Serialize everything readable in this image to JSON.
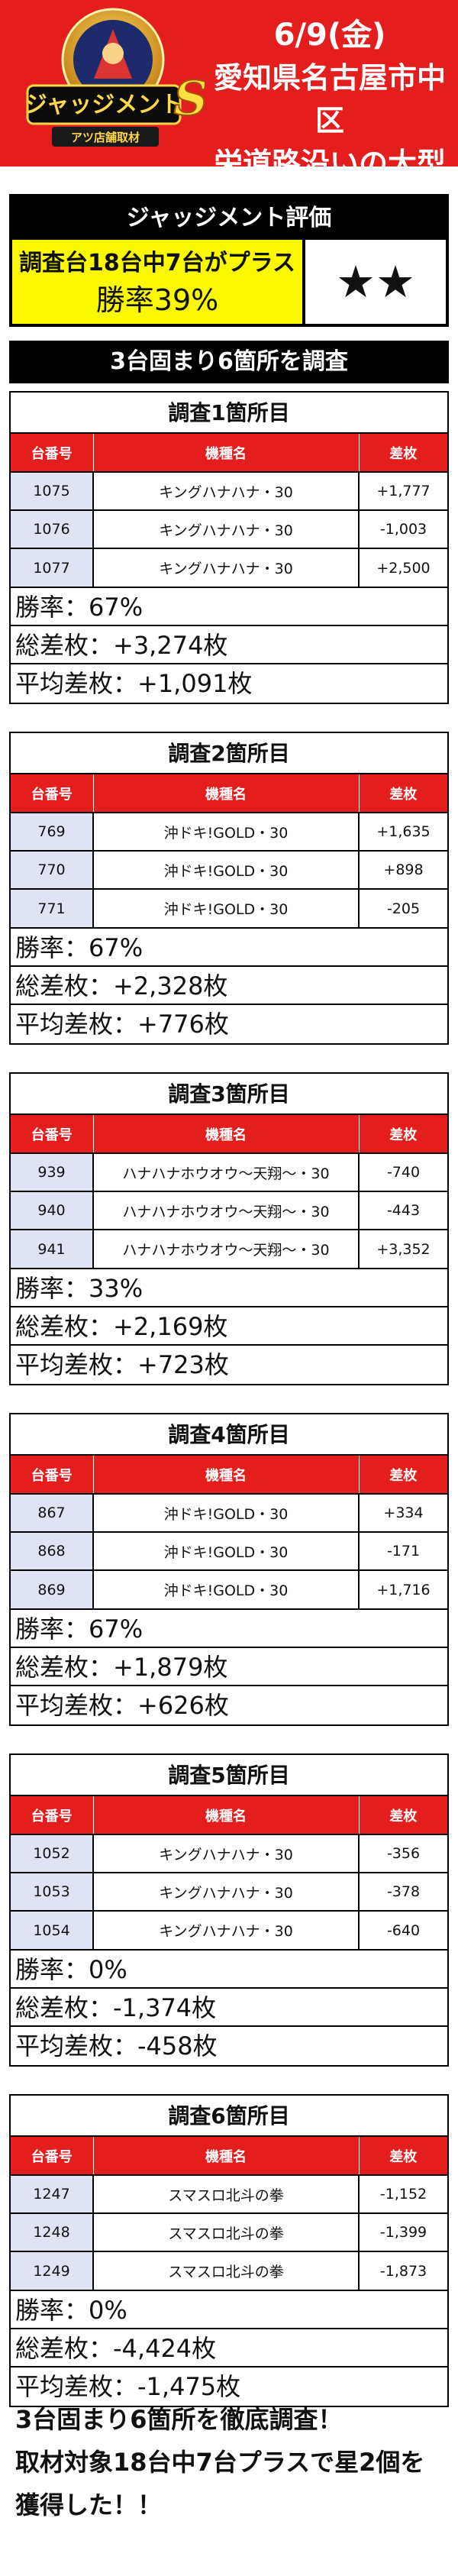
{
  "header": {
    "logo_text": "ジャッジメント",
    "logo_badge": "S",
    "logo_sub": "アツ店舗取材",
    "date": "6/9(金)",
    "location_line1": "愛知県名古屋市中区",
    "location_line2": "栄道路沿いの大型店"
  },
  "evaluation": {
    "title": "ジャッジメント評価",
    "description": "調査台18台中7台がプラス",
    "win_rate": "勝率39%",
    "stars": "★★"
  },
  "banner": "3台固まり6箇所を調査",
  "table_headers": {
    "machine_no": "台番号",
    "machine_name": "機種名",
    "diff": "差枚"
  },
  "surveys": [
    {
      "title": "調査1箇所目",
      "rows": [
        {
          "no": "1075",
          "name": "キングハナハナ・30",
          "diff": "+1,777"
        },
        {
          "no": "1076",
          "name": "キングハナハナ・30",
          "diff": "-1,003"
        },
        {
          "no": "1077",
          "name": "キングハナハナ・30",
          "diff": "+2,500"
        }
      ],
      "win_rate": "勝率：67%",
      "total": "総差枚：+3,274枚",
      "average": "平均差枚：+1,091枚"
    },
    {
      "title": "調査2箇所目",
      "rows": [
        {
          "no": "769",
          "name": "沖ドキ!GOLD・30",
          "diff": "+1,635"
        },
        {
          "no": "770",
          "name": "沖ドキ!GOLD・30",
          "diff": "+898"
        },
        {
          "no": "771",
          "name": "沖ドキ!GOLD・30",
          "diff": "-205"
        }
      ],
      "win_rate": "勝率：67%",
      "total": "総差枚：+2,328枚",
      "average": "平均差枚：+776枚"
    },
    {
      "title": "調査3箇所目",
      "rows": [
        {
          "no": "939",
          "name": "ハナハナホウオウ〜天翔〜・30",
          "diff": "-740"
        },
        {
          "no": "940",
          "name": "ハナハナホウオウ〜天翔〜・30",
          "diff": "-443"
        },
        {
          "no": "941",
          "name": "ハナハナホウオウ〜天翔〜・30",
          "diff": "+3,352"
        }
      ],
      "win_rate": "勝率：33%",
      "total": "総差枚：+2,169枚",
      "average": "平均差枚：+723枚"
    },
    {
      "title": "調査4箇所目",
      "rows": [
        {
          "no": "867",
          "name": "沖ドキ!GOLD・30",
          "diff": "+334"
        },
        {
          "no": "868",
          "name": "沖ドキ!GOLD・30",
          "diff": "-171"
        },
        {
          "no": "869",
          "name": "沖ドキ!GOLD・30",
          "diff": "+1,716"
        }
      ],
      "win_rate": "勝率：67%",
      "total": "総差枚：+1,879枚",
      "average": "平均差枚：+626枚"
    },
    {
      "title": "調査5箇所目",
      "rows": [
        {
          "no": "1052",
          "name": "キングハナハナ・30",
          "diff": "-356"
        },
        {
          "no": "1053",
          "name": "キングハナハナ・30",
          "diff": "-378"
        },
        {
          "no": "1054",
          "name": "キングハナハナ・30",
          "diff": "-640"
        }
      ],
      "win_rate": "勝率：0%",
      "total": "総差枚：-1,374枚",
      "average": "平均差枚：-458枚"
    },
    {
      "title": "調査6箇所目",
      "rows": [
        {
          "no": "1247",
          "name": "スマスロ北斗の拳",
          "diff": "-1,152"
        },
        {
          "no": "1248",
          "name": "スマスロ北斗の拳",
          "diff": "-1,399"
        },
        {
          "no": "1249",
          "name": "スマスロ北斗の拳",
          "diff": "-1,873"
        }
      ],
      "win_rate": "勝率：0%",
      "total": "総差枚：-4,424枚",
      "average": "平均差枚：-1,475枚"
    }
  ],
  "footer": {
    "line1": "3台固まり6箇所を徹底調査！",
    "line2": "取材対象18台中7台プラスで星2個を",
    "line3": "獲得した！！"
  }
}
